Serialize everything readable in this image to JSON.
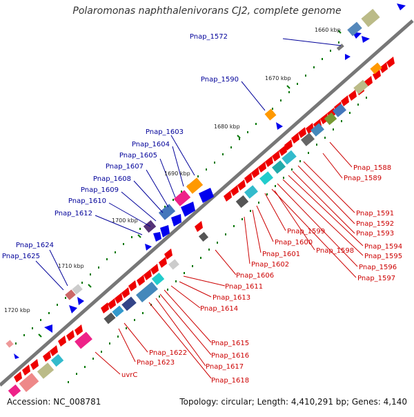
{
  "title": "Polaromonas naphthalenivorans CJ2, complete genome",
  "footer": {
    "accession": "Accession: NC_008781",
    "topology": "Topology: circular; Length: 4,410,291 bp; Genes: 4,140"
  },
  "colors": {
    "backbone": "#777777",
    "forward_label": "#000099",
    "reverse_label": "#cc0000",
    "forward_gene": "#0000ee",
    "reverse_gene": "#ee0000",
    "tick": "#007700"
  },
  "ticks": [
    "1660 kbp",
    "1670 kbp",
    "1680 kbp",
    "1690 kbp",
    "1700 kbp",
    "1710 kbp",
    "1720 kbp"
  ],
  "forward_labels": [
    "Pnap_1572",
    "Pnap_1590",
    "Pnap_1603",
    "Pnap_1604",
    "Pnap_1605",
    "Pnap_1607",
    "Pnap_1608",
    "Pnap_1609",
    "Pnap_1610",
    "Pnap_1612",
    "Pnap_1624",
    "Pnap_1625"
  ],
  "reverse_labels": [
    "Pnap_1588",
    "Pnap_1589",
    "Pnap_1591",
    "Pnap_1592",
    "Pnap_1593",
    "Pnap_1594",
    "Pnap_1595",
    "Pnap_1596",
    "Pnap_1597",
    "Pnap_1598",
    "Pnap_1599",
    "Pnap_1600",
    "Pnap_1601",
    "Pnap_1602",
    "Pnap_1606",
    "Pnap_1611",
    "Pnap_1613",
    "Pnap_1614",
    "Pnap_1615",
    "Pnap_1616",
    "Pnap_1617",
    "Pnap_1618",
    "Pnap_1622",
    "Pnap_1623",
    "uvrC"
  ]
}
